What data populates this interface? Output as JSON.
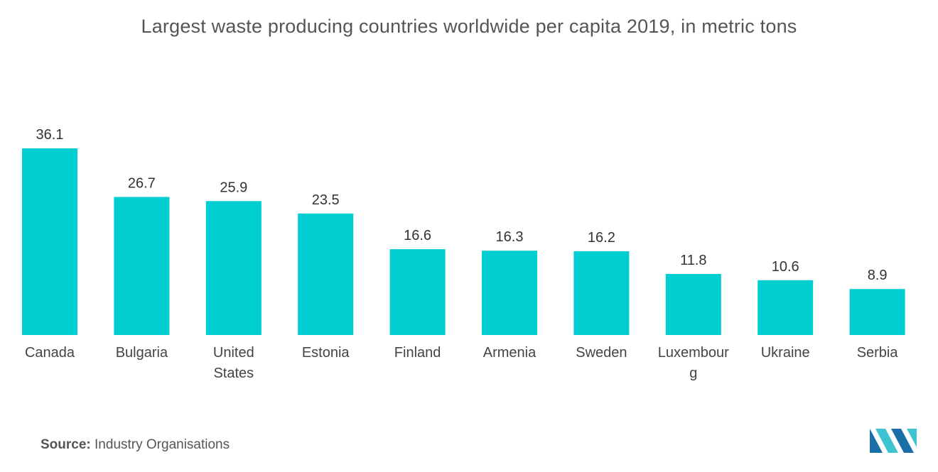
{
  "chart_data": {
    "type": "bar",
    "title": "Largest waste producing countries worldwide per capita 2019, in metric tons",
    "categories": [
      [
        "Canada"
      ],
      [
        "Bulgaria"
      ],
      [
        "United",
        "States"
      ],
      [
        "Estonia"
      ],
      [
        "Finland"
      ],
      [
        "Armenia"
      ],
      [
        "Sweden"
      ],
      [
        "Luxembour",
        "g"
      ],
      [
        "Ukraine"
      ],
      [
        "Serbia"
      ]
    ],
    "values": [
      36.1,
      26.7,
      25.9,
      23.5,
      16.6,
      16.3,
      16.2,
      11.8,
      10.6,
      8.9
    ],
    "value_labels": [
      "36.1",
      "26.7",
      "25.9",
      "23.5",
      "16.6",
      "16.3",
      "16.2",
      "11.8",
      "10.6",
      "8.9"
    ],
    "xlabel": "",
    "ylabel": "",
    "ylim": [
      0,
      36.1
    ],
    "grid": false,
    "bar_color": "#00CED1"
  },
  "source": {
    "label": "Source:",
    "text": "Industry Organisations"
  },
  "logo": {
    "icon": "mordor-intelligence-logo",
    "colors": [
      "#1B6FA8",
      "#3DC4D0"
    ]
  }
}
